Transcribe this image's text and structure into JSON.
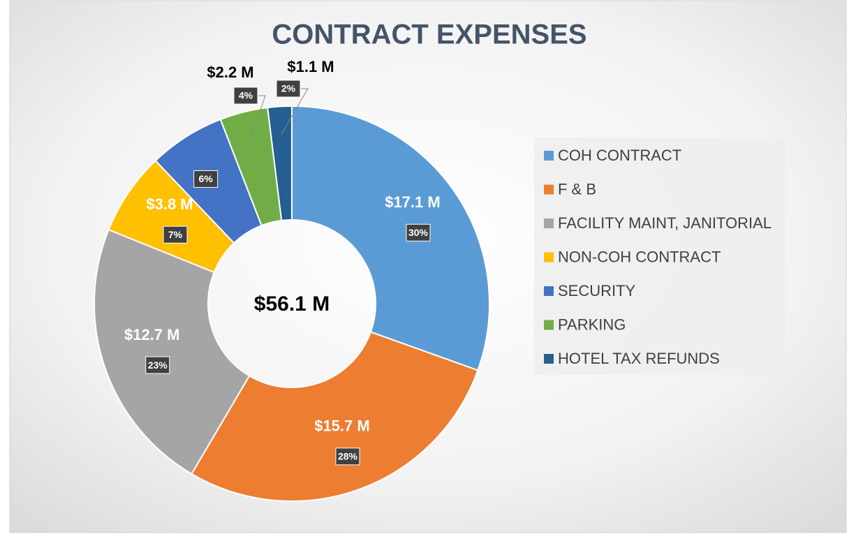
{
  "chart_data": {
    "type": "donut",
    "title": "CONTRACT EXPENSES",
    "categories": [
      "COH CONTRACT",
      "F & B",
      "FACILITY MAINT, JANITORIAL",
      "NON-COH CONTRACT",
      "SECURITY",
      "PARKING",
      "HOTEL TAX REFUNDS"
    ],
    "values": [
      17.1,
      15.7,
      12.7,
      3.8,
      3.5,
      2.2,
      1.1
    ],
    "value_labels": [
      "$17.1 M",
      "$15.7 M",
      "$12.7 M",
      "$3.8 M",
      null,
      "$2.2 M",
      "$1.1 M"
    ],
    "percents": [
      30,
      28,
      23,
      7,
      6,
      4,
      2
    ],
    "percent_labels": [
      "30%",
      "28%",
      "23%",
      "7%",
      "6%",
      "4%",
      "2%"
    ],
    "colors": [
      "#5b9bd5",
      "#ed7d31",
      "#a5a5a5",
      "#ffc000",
      "#4472c4",
      "#70ad47",
      "#255e91"
    ],
    "total_label": "$56.1 M",
    "legend": "right"
  }
}
